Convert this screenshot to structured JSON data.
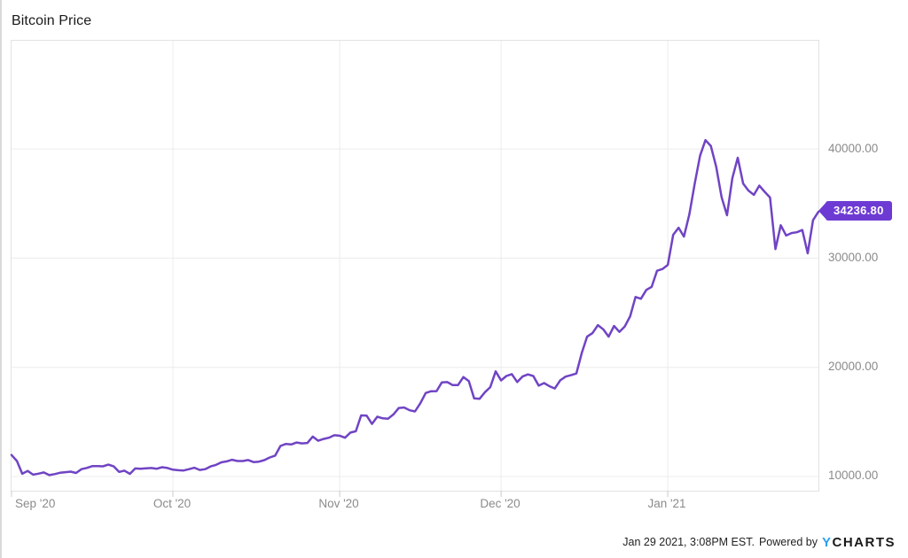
{
  "title": "Bitcoin Price",
  "colors": {
    "line": "#7044c4",
    "accent": "#6d3bd4",
    "logo_blue": "#2b9ff2",
    "grid": "#ececec",
    "axis_text": "#8b8b8b"
  },
  "badge": {
    "value": "34236.80"
  },
  "footer": {
    "timestamp": "Jan 29 2021, 3:08PM EST.",
    "powered_by": "Powered by",
    "logo_y": "Y",
    "logo_rest": "CHARTS"
  },
  "chart_data": {
    "type": "line",
    "title": "Bitcoin Price",
    "series_name": "Bitcoin Price",
    "x_unit": "day",
    "xticks": [
      {
        "label": "Sep '20",
        "index": 0
      },
      {
        "label": "Oct '20",
        "index": 30
      },
      {
        "label": "Nov '20",
        "index": 61
      },
      {
        "label": "Dec '20",
        "index": 91
      },
      {
        "label": "Jan '21",
        "index": 122
      }
    ],
    "yticks": [
      {
        "label": "40000.00",
        "value": 40000
      },
      {
        "label": "30000.00",
        "value": 30000
      },
      {
        "label": "20000.00",
        "value": 20000
      },
      {
        "label": "10000.00",
        "value": 10000
      }
    ],
    "ylim": [
      8700,
      49900
    ],
    "grid": true,
    "legend": false,
    "last_value": 34236.8,
    "values": [
      11970,
      11414,
      10245,
      10511,
      10169,
      10258,
      10373,
      10126,
      10219,
      10337,
      10391,
      10441,
      10323,
      10668,
      10784,
      10948,
      10944,
      10933,
      11083,
      10920,
      10417,
      10529,
      10241,
      10736,
      10702,
      10754,
      10774,
      10709,
      10848,
      10776,
      10619,
      10573,
      10551,
      10671,
      10797,
      10597,
      10669,
      10923,
      11062,
      11296,
      11384,
      11528,
      11420,
      11417,
      11503,
      11322,
      11360,
      11501,
      11745,
      11913,
      12798,
      12985,
      12931,
      13108,
      13031,
      13070,
      13654,
      13271,
      13437,
      13546,
      13781,
      13737,
      13550,
      14023,
      14144,
      15590,
      15579,
      14818,
      15475,
      15328,
      15290,
      15684,
      16276,
      16317,
      16068,
      15955,
      16713,
      17645,
      17804,
      17817,
      18621,
      18642,
      18370,
      18365,
      19107,
      18729,
      17151,
      17108,
      17717,
      18177,
      19625,
      18800,
      19201,
      19371,
      18650,
      19154,
      19345,
      19191,
      18321,
      18553,
      18264,
      18058,
      18803,
      19142,
      19273,
      19426,
      21310,
      22806,
      23132,
      23861,
      23477,
      22803,
      23783,
      23241,
      23735,
      24677,
      26437,
      26272,
      27084,
      27362,
      28840,
      29001,
      29374,
      32127,
      32782,
      31971,
      33992,
      36824,
      39371,
      40797,
      40254,
      38356,
      35566,
      33922,
      37316,
      39187,
      36825,
      36178,
      35791,
      36630,
      36069,
      35547,
      30825,
      33005,
      32067,
      32289,
      32366,
      32569,
      30432,
      33466,
      34236.8
    ]
  }
}
